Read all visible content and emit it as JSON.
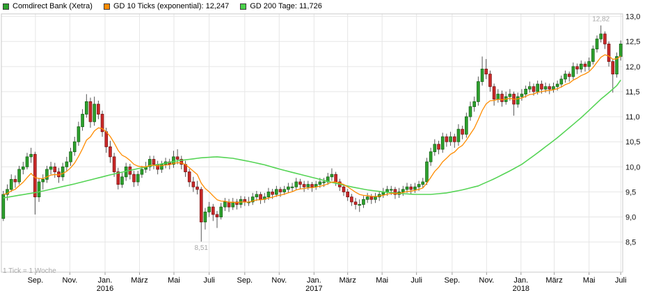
{
  "legend": {
    "items": [
      {
        "label": "Comdirect Bank (Xetra)",
        "color": "#2da12d"
      },
      {
        "label": "GD 10 Ticks (exponential): 12,247",
        "color": "#ff8c00"
      },
      {
        "label": "GD 200 Tage: 11,726",
        "color": "#4ad24a"
      }
    ]
  },
  "footnote": "1 Tick = 1 Woche",
  "annotations": {
    "high": {
      "label": "12,82",
      "week": 151,
      "value": 12.82,
      "dy": -6
    },
    "low": {
      "label": "8,51",
      "week": 50,
      "value": 8.51,
      "dy": 12
    }
  },
  "axes": {
    "y": {
      "ticks": [
        {
          "v": 8.5,
          "label": "8,5"
        },
        {
          "v": 9.0,
          "label": "9,0"
        },
        {
          "v": 9.5,
          "label": "9,5"
        },
        {
          "v": 10.0,
          "label": "10,0"
        },
        {
          "v": 10.5,
          "label": "10,5"
        },
        {
          "v": 11.0,
          "label": "11,0"
        },
        {
          "v": 11.5,
          "label": "11,5"
        },
        {
          "v": 12.0,
          "label": "12,0"
        },
        {
          "v": 12.5,
          "label": "12,5"
        },
        {
          "v": 13.0,
          "label": "13,0"
        }
      ]
    },
    "x": {
      "months": [
        {
          "label": "Sep.",
          "week": 8.6
        },
        {
          "label": "Nov.",
          "week": 17.3
        },
        {
          "label": "Jan.",
          "week": 26.2
        },
        {
          "label": "März",
          "week": 34.9
        },
        {
          "label": "Mai",
          "week": 43.6
        },
        {
          "label": "Juli",
          "week": 52.5
        },
        {
          "label": "Sep.",
          "week": 61.5
        },
        {
          "label": "Nov.",
          "week": 70.2
        },
        {
          "label": "Jan.",
          "week": 79.0
        },
        {
          "label": "März",
          "week": 87.5
        },
        {
          "label": "Mai",
          "week": 96.2
        },
        {
          "label": "Juli",
          "week": 104.9
        },
        {
          "label": "Sep.",
          "week": 113.9
        },
        {
          "label": "Nov.",
          "week": 122.6
        },
        {
          "label": "Jan.",
          "week": 131.3
        },
        {
          "label": "März",
          "week": 139.7
        },
        {
          "label": "Mai",
          "week": 148.5
        },
        {
          "label": "Juli",
          "week": 156.5
        }
      ],
      "years": [
        {
          "label": "2016",
          "week": 26.2
        },
        {
          "label": "2017",
          "week": 79.0
        },
        {
          "label": "2018",
          "week": 131.3
        }
      ]
    }
  },
  "chart_data": {
    "type": "candlestick",
    "title": "Comdirect Bank (Xetra)",
    "interval": "1 Tick = 1 Woche",
    "series_notes": "ohlc = weekly [open, high, low, close]; gd10 = exponential MA of 10 ticks (last value 12.247); gd200 = 200-day MA polyline anchors [week, value] (last value 11.726)",
    "ylim": [
      7.9,
      13.05
    ],
    "gd10_last": 12.247,
    "gd200_last": 11.726,
    "ohlc": [
      [
        8.97,
        9.52,
        8.92,
        9.45
      ],
      [
        9.45,
        9.65,
        9.33,
        9.55
      ],
      [
        9.55,
        9.85,
        9.5,
        9.75
      ],
      [
        9.75,
        9.83,
        9.58,
        9.7
      ],
      [
        9.7,
        10.02,
        9.65,
        9.95
      ],
      [
        9.95,
        10.1,
        9.85,
        10.0
      ],
      [
        10.0,
        10.28,
        9.95,
        10.2
      ],
      [
        10.2,
        10.38,
        10.08,
        10.25
      ],
      [
        10.25,
        10.3,
        9.05,
        9.4
      ],
      [
        9.4,
        9.78,
        9.3,
        9.7
      ],
      [
        9.7,
        9.85,
        9.55,
        9.75
      ],
      [
        9.75,
        10.02,
        9.68,
        9.95
      ],
      [
        9.95,
        10.1,
        9.85,
        10.0
      ],
      [
        10.0,
        10.08,
        9.78,
        9.9
      ],
      [
        9.9,
        9.98,
        9.68,
        9.8
      ],
      [
        9.8,
        10.08,
        9.72,
        10.0
      ],
      [
        10.0,
        10.2,
        9.92,
        10.1
      ],
      [
        10.1,
        10.38,
        10.02,
        10.3
      ],
      [
        10.3,
        10.6,
        10.22,
        10.5
      ],
      [
        10.5,
        10.9,
        10.42,
        10.8
      ],
      [
        10.8,
        11.15,
        10.72,
        11.05
      ],
      [
        11.05,
        11.45,
        10.98,
        11.3
      ],
      [
        11.3,
        11.38,
        10.78,
        10.9
      ],
      [
        10.9,
        11.4,
        10.82,
        11.25
      ],
      [
        11.25,
        11.32,
        10.95,
        11.05
      ],
      [
        11.05,
        11.12,
        10.6,
        10.7
      ],
      [
        10.7,
        10.78,
        10.28,
        10.4
      ],
      [
        10.4,
        10.52,
        10.08,
        10.2
      ],
      [
        10.2,
        10.28,
        9.8,
        9.9
      ],
      [
        9.9,
        9.98,
        9.55,
        9.65
      ],
      [
        9.65,
        9.88,
        9.58,
        9.8
      ],
      [
        9.8,
        10.08,
        9.72,
        10.0
      ],
      [
        10.0,
        10.06,
        9.75,
        9.85
      ],
      [
        9.85,
        9.92,
        9.6,
        9.7
      ],
      [
        9.7,
        9.92,
        9.62,
        9.85
      ],
      [
        9.85,
        10.02,
        9.78,
        9.95
      ],
      [
        9.95,
        10.1,
        9.88,
        10.0
      ],
      [
        10.0,
        10.22,
        9.92,
        10.15
      ],
      [
        10.15,
        10.22,
        9.95,
        10.05
      ],
      [
        10.05,
        10.12,
        9.85,
        9.95
      ],
      [
        9.95,
        10.12,
        9.88,
        10.05
      ],
      [
        10.05,
        10.18,
        9.97,
        10.1
      ],
      [
        10.1,
        10.16,
        9.95,
        10.05
      ],
      [
        10.05,
        10.32,
        9.98,
        10.2
      ],
      [
        10.2,
        10.35,
        10.05,
        10.15
      ],
      [
        10.15,
        10.22,
        9.95,
        10.05
      ],
      [
        10.05,
        10.12,
        9.8,
        9.9
      ],
      [
        9.9,
        9.96,
        9.6,
        9.7
      ],
      [
        9.7,
        9.8,
        9.5,
        9.6
      ],
      [
        9.6,
        9.72,
        9.45,
        9.55
      ],
      [
        9.55,
        9.6,
        8.51,
        8.9
      ],
      [
        8.9,
        9.18,
        8.75,
        9.1
      ],
      [
        9.1,
        9.3,
        9.0,
        9.2
      ],
      [
        9.2,
        9.26,
        8.92,
        9.05
      ],
      [
        9.05,
        9.12,
        8.78,
        9.0
      ],
      [
        9.0,
        9.28,
        8.95,
        9.2
      ],
      [
        9.2,
        9.38,
        9.12,
        9.3
      ],
      [
        9.3,
        9.36,
        9.1,
        9.2
      ],
      [
        9.2,
        9.38,
        9.14,
        9.3
      ],
      [
        9.3,
        9.36,
        9.15,
        9.25
      ],
      [
        9.25,
        9.42,
        9.18,
        9.35
      ],
      [
        9.35,
        9.41,
        9.22,
        9.3
      ],
      [
        9.3,
        9.4,
        9.22,
        9.3
      ],
      [
        9.3,
        9.48,
        9.24,
        9.4
      ],
      [
        9.4,
        9.52,
        9.32,
        9.45
      ],
      [
        9.45,
        9.5,
        9.26,
        9.35
      ],
      [
        9.35,
        9.48,
        9.28,
        9.4
      ],
      [
        9.4,
        9.58,
        9.34,
        9.5
      ],
      [
        9.5,
        9.56,
        9.36,
        9.45
      ],
      [
        9.45,
        9.62,
        9.4,
        9.55
      ],
      [
        9.55,
        9.6,
        9.4,
        9.5
      ],
      [
        9.5,
        9.62,
        9.44,
        9.55
      ],
      [
        9.55,
        9.68,
        9.48,
        9.6
      ],
      [
        9.6,
        9.68,
        9.5,
        9.6
      ],
      [
        9.6,
        9.78,
        9.54,
        9.7
      ],
      [
        9.7,
        9.76,
        9.55,
        9.65
      ],
      [
        9.65,
        9.72,
        9.5,
        9.6
      ],
      [
        9.6,
        9.72,
        9.54,
        9.65
      ],
      [
        9.65,
        9.7,
        9.5,
        9.6
      ],
      [
        9.6,
        9.72,
        9.54,
        9.65
      ],
      [
        9.65,
        9.78,
        9.58,
        9.7
      ],
      [
        9.7,
        9.78,
        9.6,
        9.7
      ],
      [
        9.7,
        9.88,
        9.64,
        9.8
      ],
      [
        9.8,
        9.97,
        9.72,
        9.85
      ],
      [
        9.85,
        9.9,
        9.62,
        9.7
      ],
      [
        9.7,
        9.76,
        9.52,
        9.6
      ],
      [
        9.6,
        9.66,
        9.42,
        9.5
      ],
      [
        9.5,
        9.56,
        9.32,
        9.4
      ],
      [
        9.4,
        9.46,
        9.22,
        9.3
      ],
      [
        9.3,
        9.38,
        9.15,
        9.25
      ],
      [
        9.25,
        9.35,
        9.1,
        9.25
      ],
      [
        9.25,
        9.42,
        9.18,
        9.35
      ],
      [
        9.35,
        9.48,
        9.28,
        9.4
      ],
      [
        9.4,
        9.46,
        9.26,
        9.35
      ],
      [
        9.35,
        9.48,
        9.28,
        9.4
      ],
      [
        9.4,
        9.52,
        9.32,
        9.45
      ],
      [
        9.45,
        9.58,
        9.38,
        9.5
      ],
      [
        9.5,
        9.62,
        9.42,
        9.55
      ],
      [
        9.55,
        9.62,
        9.44,
        9.55
      ],
      [
        9.55,
        9.6,
        9.36,
        9.45
      ],
      [
        9.45,
        9.58,
        9.38,
        9.5
      ],
      [
        9.5,
        9.62,
        9.42,
        9.55
      ],
      [
        9.55,
        9.68,
        9.48,
        9.6
      ],
      [
        9.6,
        9.66,
        9.46,
        9.55
      ],
      [
        9.55,
        9.68,
        9.48,
        9.6
      ],
      [
        9.6,
        9.72,
        9.52,
        9.65
      ],
      [
        9.65,
        9.78,
        9.58,
        9.7
      ],
      [
        9.7,
        10.18,
        9.64,
        10.1
      ],
      [
        10.1,
        10.38,
        10.02,
        10.3
      ],
      [
        10.3,
        10.55,
        10.22,
        10.45
      ],
      [
        10.45,
        10.52,
        10.25,
        10.35
      ],
      [
        10.35,
        10.68,
        10.28,
        10.6
      ],
      [
        10.6,
        10.66,
        10.4,
        10.5
      ],
      [
        10.5,
        10.7,
        10.42,
        10.6
      ],
      [
        10.6,
        10.66,
        10.38,
        10.5
      ],
      [
        10.5,
        10.85,
        10.42,
        10.75
      ],
      [
        10.75,
        10.82,
        10.55,
        10.65
      ],
      [
        10.65,
        11.08,
        10.58,
        11.0
      ],
      [
        11.0,
        11.3,
        10.92,
        11.2
      ],
      [
        11.2,
        11.4,
        11.1,
        11.3
      ],
      [
        11.3,
        11.8,
        11.22,
        11.7
      ],
      [
        11.7,
        12.2,
        11.62,
        11.95
      ],
      [
        11.95,
        12.15,
        11.75,
        11.85
      ],
      [
        11.85,
        11.92,
        11.5,
        11.6
      ],
      [
        11.6,
        11.66,
        11.22,
        11.35
      ],
      [
        11.35,
        11.55,
        11.28,
        11.45
      ],
      [
        11.45,
        11.52,
        11.2,
        11.3
      ],
      [
        11.3,
        11.5,
        11.24,
        11.4
      ],
      [
        11.4,
        11.55,
        11.32,
        11.45
      ],
      [
        11.45,
        11.5,
        11.02,
        11.25
      ],
      [
        11.25,
        11.48,
        11.18,
        11.4
      ],
      [
        11.4,
        11.55,
        11.32,
        11.45
      ],
      [
        11.45,
        11.62,
        11.38,
        11.55
      ],
      [
        11.55,
        11.7,
        11.48,
        11.6
      ],
      [
        11.6,
        11.66,
        11.42,
        11.5
      ],
      [
        11.5,
        11.72,
        11.44,
        11.65
      ],
      [
        11.65,
        11.72,
        11.46,
        11.55
      ],
      [
        11.55,
        11.68,
        11.48,
        11.6
      ],
      [
        11.6,
        11.66,
        11.45,
        11.55
      ],
      [
        11.55,
        11.68,
        11.48,
        11.6
      ],
      [
        11.6,
        11.72,
        11.52,
        11.65
      ],
      [
        11.65,
        11.82,
        11.58,
        11.75
      ],
      [
        11.75,
        11.92,
        11.68,
        11.85
      ],
      [
        11.85,
        11.9,
        11.7,
        11.8
      ],
      [
        11.8,
        12.08,
        11.74,
        12.0
      ],
      [
        12.0,
        12.06,
        11.85,
        11.95
      ],
      [
        11.95,
        12.12,
        11.88,
        12.05
      ],
      [
        12.05,
        12.1,
        11.9,
        12.0
      ],
      [
        12.0,
        12.18,
        11.92,
        12.1
      ],
      [
        12.1,
        12.42,
        12.04,
        12.35
      ],
      [
        12.35,
        12.62,
        12.28,
        12.55
      ],
      [
        12.55,
        12.82,
        12.48,
        12.65
      ],
      [
        12.65,
        12.7,
        12.35,
        12.45
      ],
      [
        12.45,
        12.5,
        12.0,
        12.1
      ],
      [
        12.1,
        12.15,
        11.48,
        11.85
      ],
      [
        11.85,
        12.28,
        11.78,
        12.2
      ],
      [
        12.2,
        12.52,
        12.12,
        12.45
      ]
    ],
    "gd200_points": [
      [
        0,
        9.38
      ],
      [
        9,
        9.5
      ],
      [
        18,
        9.66
      ],
      [
        27,
        9.84
      ],
      [
        36,
        10.0
      ],
      [
        44,
        10.12
      ],
      [
        50,
        10.18
      ],
      [
        54,
        10.2
      ],
      [
        58,
        10.17
      ],
      [
        62,
        10.11
      ],
      [
        66,
        10.04
      ],
      [
        70,
        9.95
      ],
      [
        75,
        9.85
      ],
      [
        79,
        9.77
      ],
      [
        83,
        9.69
      ],
      [
        88,
        9.6
      ],
      [
        92,
        9.54
      ],
      [
        96,
        9.5
      ],
      [
        100,
        9.47
      ],
      [
        104,
        9.45
      ],
      [
        108,
        9.45
      ],
      [
        112,
        9.48
      ],
      [
        116,
        9.54
      ],
      [
        120,
        9.62
      ],
      [
        124,
        9.76
      ],
      [
        128,
        9.92
      ],
      [
        131,
        10.05
      ],
      [
        134,
        10.22
      ],
      [
        137,
        10.4
      ],
      [
        140,
        10.58
      ],
      [
        143,
        10.78
      ],
      [
        146,
        10.98
      ],
      [
        149,
        11.2
      ],
      [
        151,
        11.35
      ],
      [
        153,
        11.48
      ],
      [
        155,
        11.62
      ],
      [
        156,
        11.73
      ]
    ],
    "colors": {
      "up": "#2da12d",
      "up_border": "#176617",
      "down": "#cc2929",
      "down_border": "#7a1414",
      "wick": "#444444",
      "gd10": "#ff8c00",
      "gd200": "#55d455",
      "grid": "#e6e6e6",
      "axis": "#c8c8c8",
      "label": "#111111",
      "muted": "#a8a8a8"
    }
  }
}
